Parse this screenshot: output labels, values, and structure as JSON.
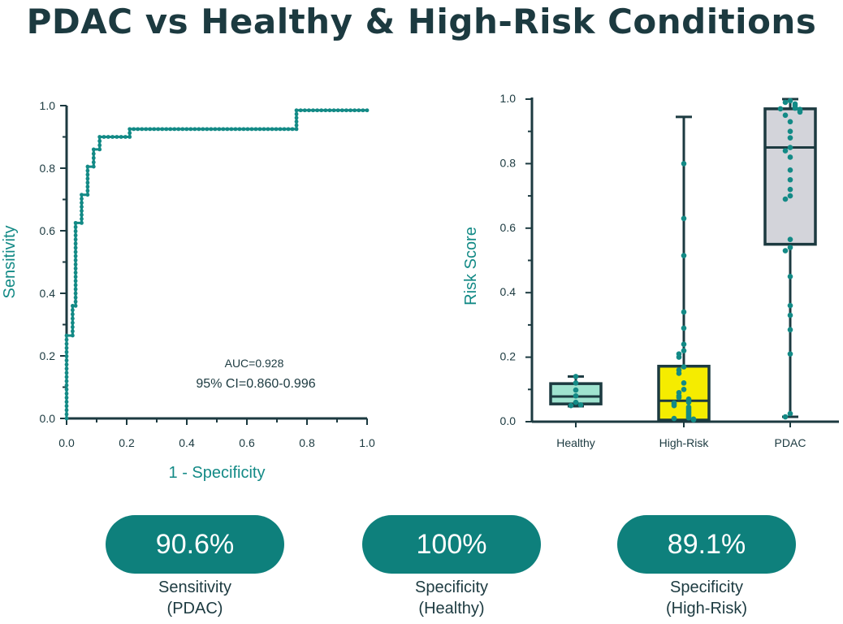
{
  "title": "PDAC vs Healthy & High-Risk Conditions",
  "colors": {
    "teal": "#138a86",
    "dark": "#1c3a40",
    "pill": "#0e807c"
  },
  "stats": [
    {
      "value": "90.6%",
      "label_line1": "Sensitivity",
      "label_line2": "(PDAC)"
    },
    {
      "value": "100%",
      "label_line1": "Specificity",
      "label_line2": "(Healthy)"
    },
    {
      "value": "89.1%",
      "label_line1": "Specificity",
      "label_line2": "(High-Risk)"
    }
  ],
  "chart_data": [
    {
      "type": "line",
      "xlabel": "1 - Specificity",
      "ylabel": "Sensitivity",
      "xlim": [
        0,
        1
      ],
      "ylim": [
        0,
        1
      ],
      "xticks": [
        "0.0",
        "0.2",
        "0.4",
        "0.6",
        "0.8",
        "1.0"
      ],
      "yticks": [
        "0.0",
        "0.2",
        "0.4",
        "0.6",
        "0.8",
        "1.0"
      ],
      "annotations": {
        "auc": "AUC=0.928",
        "ci": "95% CI=0.860-0.996"
      },
      "roc_points": [
        [
          0,
          0
        ],
        [
          0,
          0.265
        ],
        [
          0.02,
          0.265
        ],
        [
          0.02,
          0.36
        ],
        [
          0.03,
          0.36
        ],
        [
          0.03,
          0.625
        ],
        [
          0.05,
          0.625
        ],
        [
          0.05,
          0.715
        ],
        [
          0.07,
          0.715
        ],
        [
          0.07,
          0.805
        ],
        [
          0.09,
          0.805
        ],
        [
          0.09,
          0.86
        ],
        [
          0.11,
          0.86
        ],
        [
          0.11,
          0.9
        ],
        [
          0.21,
          0.9
        ],
        [
          0.21,
          0.925
        ],
        [
          0.765,
          0.925
        ],
        [
          0.765,
          0.985
        ],
        [
          1.0,
          0.985
        ]
      ]
    },
    {
      "type": "box",
      "ylabel": "Risk Score",
      "ylim": [
        0,
        1
      ],
      "yticks": [
        "0.0",
        "0.2",
        "0.4",
        "0.6",
        "0.8",
        "1.0"
      ],
      "categories": [
        "Healthy",
        "High-Risk",
        "PDAC"
      ],
      "boxes": [
        {
          "name": "Healthy",
          "color": "#9fe3cf",
          "min": 0.048,
          "q1": 0.055,
          "median": 0.078,
          "q3": 0.118,
          "max": 0.14,
          "points": [
            0.14,
            0.12,
            0.098,
            0.08,
            0.06,
            0.05,
            0.052
          ]
        },
        {
          "name": "High-Risk",
          "color": "#f5ec00",
          "min": 0.005,
          "q1": 0.005,
          "median": 0.065,
          "q3": 0.172,
          "max": 0.945,
          "points": [
            0.8,
            0.63,
            0.515,
            0.34,
            0.29,
            0.24,
            0.22,
            0.21,
            0.2,
            0.17,
            0.16,
            0.15,
            0.12,
            0.1,
            0.09,
            0.08,
            0.075,
            0.07,
            0.065,
            0.06,
            0.058,
            0.055,
            0.05,
            0.045,
            0.04,
            0.035,
            0.03,
            0.025,
            0.02,
            0.015,
            0.012,
            0.01,
            0.008,
            0.006
          ]
        },
        {
          "name": "PDAC",
          "color": "#d3d4da",
          "min": 0.015,
          "q1": 0.55,
          "median": 0.85,
          "q3": 0.97,
          "max": 1.0,
          "points": [
            0.995,
            0.99,
            0.985,
            0.98,
            0.975,
            0.972,
            0.97,
            0.968,
            0.965,
            0.96,
            0.95,
            0.93,
            0.9,
            0.88,
            0.85,
            0.84,
            0.82,
            0.78,
            0.75,
            0.72,
            0.7,
            0.69,
            0.565,
            0.54,
            0.53,
            0.45,
            0.36,
            0.33,
            0.285,
            0.21,
            0.025,
            0.015
          ]
        }
      ]
    }
  ]
}
